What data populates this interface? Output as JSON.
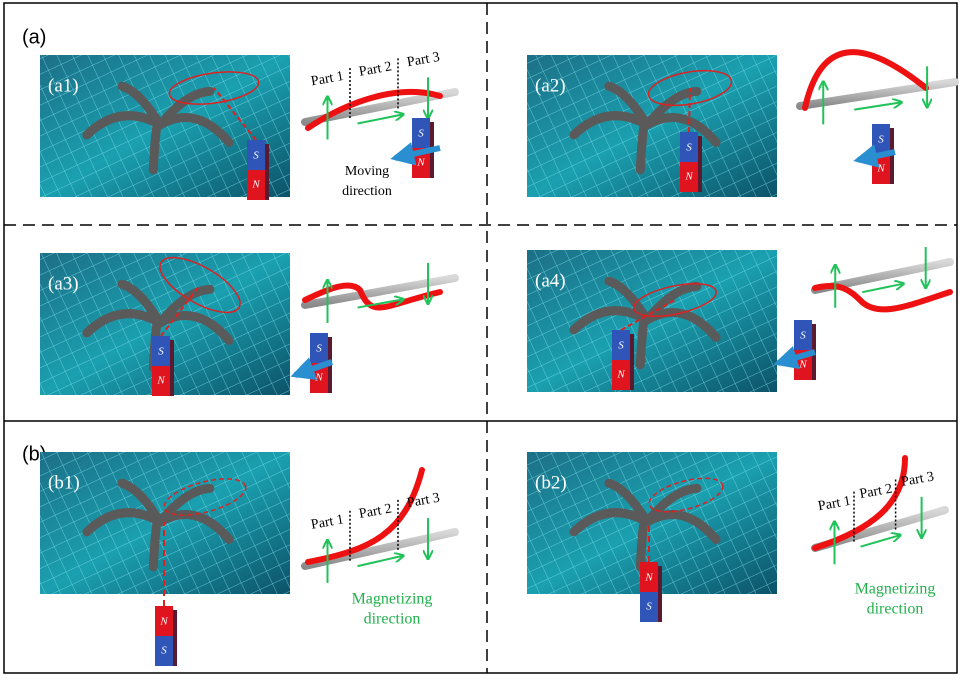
{
  "labels": {
    "a": "(a)",
    "b": "(b)"
  },
  "panels": [
    {
      "label": "(a1)",
      "parts": [
        "Part 1",
        "Part 2",
        "Part 3"
      ],
      "magnet": [
        "S",
        "N"
      ],
      "caption": [
        "Moving",
        "direction"
      ]
    },
    {
      "label": "(a2)",
      "magnet": [
        "S",
        "N"
      ]
    },
    {
      "label": "(a3)",
      "magnet": [
        "S",
        "N"
      ]
    },
    {
      "label": "(a4)",
      "magnet": [
        "S",
        "N"
      ]
    },
    {
      "label": "(b1)",
      "parts": [
        "Part 1",
        "Part 2",
        "Part 3"
      ],
      "magnet": [
        "N",
        "S"
      ],
      "caption": [
        "Magnetizing",
        "direction"
      ]
    },
    {
      "label": "(b2)",
      "parts": [
        "Part 1",
        "Part 2",
        "Part 3"
      ],
      "magnet": [
        "N",
        "S"
      ],
      "caption": [
        "Magnetizing",
        "direction"
      ]
    }
  ]
}
